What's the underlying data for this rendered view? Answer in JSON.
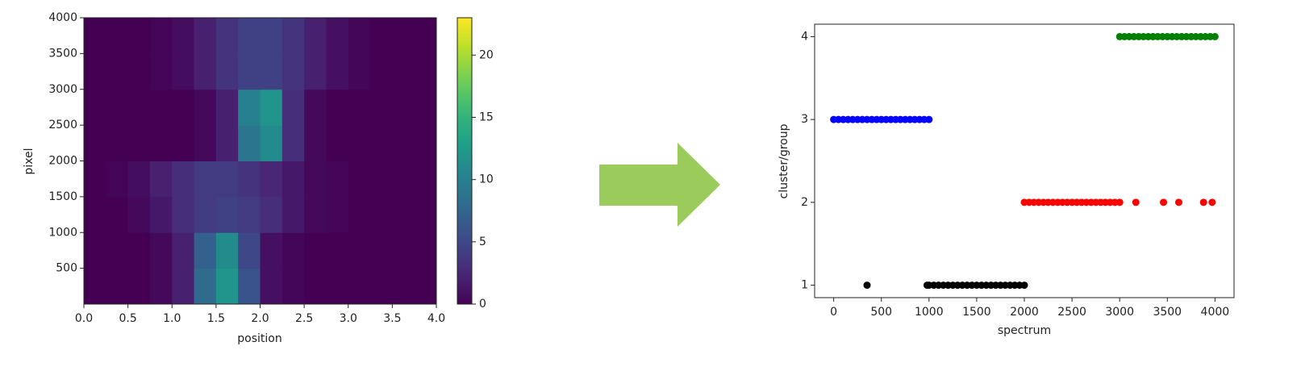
{
  "chart_data": [
    {
      "type": "heatmap",
      "xlabel": "position",
      "ylabel": "pixel",
      "x_bins": [
        0,
        0.25,
        0.5,
        0.75,
        1,
        1.25,
        1.5,
        1.75,
        2,
        2.25,
        2.5,
        2.75,
        3,
        3.25,
        3.5,
        3.75,
        4
      ],
      "y_bins": [
        0,
        500,
        1000,
        1500,
        2000,
        2500,
        3000,
        3500,
        4000
      ],
      "values": [
        [
          0,
          0,
          0,
          0.5,
          2,
          8,
          12,
          6,
          1,
          0.3,
          0,
          0,
          0,
          0,
          0,
          0
        ],
        [
          0,
          0,
          0,
          0.5,
          2,
          7,
          11,
          5,
          1,
          0.3,
          0,
          0,
          0,
          0,
          0,
          0
        ],
        [
          0,
          0,
          0.5,
          1.5,
          3,
          4,
          4.5,
          4,
          3,
          1.5,
          0.5,
          0.2,
          0,
          0,
          0,
          0
        ],
        [
          0,
          0.2,
          0.8,
          2,
          3,
          4,
          4,
          3.5,
          2.5,
          1.5,
          0.5,
          0.2,
          0,
          0,
          0,
          0
        ],
        [
          0,
          0,
          0,
          0,
          0,
          0.5,
          2,
          9,
          11,
          3,
          0.5,
          0,
          0,
          0,
          0,
          0
        ],
        [
          0,
          0,
          0,
          0,
          0,
          0.5,
          2,
          10,
          12,
          3,
          0.5,
          0,
          0,
          0,
          0,
          0
        ],
        [
          0,
          0,
          0,
          0.2,
          0.8,
          2,
          3.5,
          4.5,
          4.5,
          3.5,
          2,
          1,
          0.3,
          0,
          0,
          0
        ],
        [
          0,
          0,
          0,
          0.2,
          0.8,
          2,
          3.5,
          4.5,
          4.5,
          3.5,
          2,
          1,
          0.3,
          0,
          0,
          0
        ]
      ],
      "xlim": [
        0,
        4
      ],
      "xticks": [
        {
          "value": 0,
          "label": "0.0"
        },
        0.5,
        {
          "value": 1,
          "label": "1.0"
        },
        1.5,
        {
          "value": 2,
          "label": "2.0"
        },
        2.5,
        {
          "value": 3,
          "label": "3.0"
        },
        3.5,
        {
          "value": 4,
          "label": "4.0"
        }
      ],
      "ylim": [
        0,
        4000
      ],
      "yticks": [
        500,
        1000,
        1500,
        2000,
        2500,
        3000,
        3500,
        4000
      ],
      "colormap": "viridis",
      "colorbar": {
        "lim": [
          0,
          23
        ],
        "ticks": [
          0,
          5,
          10,
          15,
          20
        ]
      }
    },
    {
      "type": "scatter",
      "xlabel": "spectrum",
      "ylabel": "cluster/group",
      "xlim": [
        -200,
        4200
      ],
      "xticks": [
        0,
        500,
        1000,
        1500,
        2000,
        2500,
        3000,
        3500,
        4000
      ],
      "ylim": [
        0.85,
        4.15
      ],
      "yticks": [
        1,
        2,
        3,
        4
      ],
      "series": [
        {
          "color": "#0000ff",
          "x": [
            0,
            50,
            100,
            150,
            200,
            250,
            300,
            350,
            400,
            450,
            500,
            550,
            600,
            650,
            700,
            750,
            800,
            850,
            900,
            950,
            1000
          ],
          "values": [
            3,
            3,
            3,
            3,
            3,
            3,
            3,
            3,
            3,
            3,
            3,
            3,
            3,
            3,
            3,
            3,
            3,
            3,
            3,
            3,
            3
          ]
        },
        {
          "color": "#000000",
          "x": [
            350,
            980,
            1000,
            1050,
            1100,
            1150,
            1200,
            1250,
            1300,
            1350,
            1400,
            1450,
            1500,
            1550,
            1600,
            1650,
            1700,
            1750,
            1800,
            1850,
            1900,
            1950,
            2000
          ],
          "values": [
            1,
            1,
            1,
            1,
            1,
            1,
            1,
            1,
            1,
            1,
            1,
            1,
            1,
            1,
            1,
            1,
            1,
            1,
            1,
            1,
            1,
            1,
            1
          ]
        },
        {
          "color": "#ff0000",
          "x": [
            2000,
            2050,
            2100,
            2150,
            2200,
            2250,
            2300,
            2350,
            2400,
            2450,
            2500,
            2550,
            2600,
            2650,
            2700,
            2750,
            2800,
            2850,
            2900,
            2950,
            3000,
            3170,
            3460,
            3620,
            3880,
            3970
          ],
          "values": [
            2,
            2,
            2,
            2,
            2,
            2,
            2,
            2,
            2,
            2,
            2,
            2,
            2,
            2,
            2,
            2,
            2,
            2,
            2,
            2,
            2,
            2,
            2,
            2,
            2,
            2
          ]
        },
        {
          "color": "#008000",
          "x": [
            3000,
            3050,
            3100,
            3150,
            3200,
            3250,
            3300,
            3350,
            3400,
            3450,
            3500,
            3550,
            3600,
            3650,
            3700,
            3750,
            3800,
            3850,
            3900,
            3950,
            4000
          ],
          "values": [
            4,
            4,
            4,
            4,
            4,
            4,
            4,
            4,
            4,
            4,
            4,
            4,
            4,
            4,
            4,
            4,
            4,
            4,
            4,
            4,
            4
          ]
        }
      ]
    }
  ]
}
